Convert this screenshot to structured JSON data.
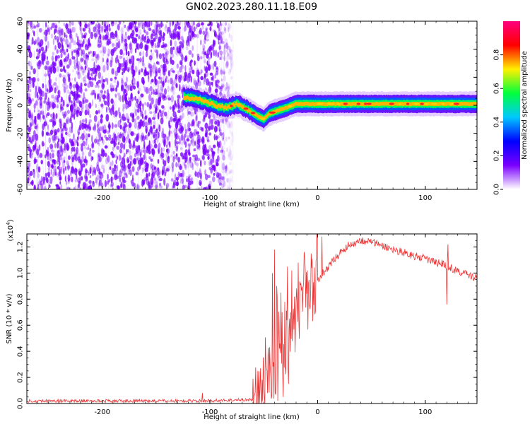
{
  "title": "GN02.2023.280.11.18.E09",
  "chart_data": [
    {
      "type": "heatmap",
      "xlabel": "Height of straight line (km)",
      "ylabel": "Frequency (Hz)",
      "xlim": [
        -270,
        148
      ],
      "ylim": [
        -60,
        60
      ],
      "xticks": [
        -200,
        -100,
        0,
        100
      ],
      "xtick_labels": [
        "-200",
        "-100",
        "0",
        "100"
      ],
      "yticks": [
        -60,
        -40,
        -20,
        0,
        20,
        40,
        60
      ],
      "ytick_labels": [
        "-60",
        "-40",
        "-20",
        "0",
        "20",
        "40",
        "60"
      ],
      "noise_region_x": [
        -270,
        -78
      ],
      "ridge": [
        {
          "x": -125,
          "y": 6
        },
        {
          "x": -115,
          "y": 5
        },
        {
          "x": -105,
          "y": 3
        },
        {
          "x": -95,
          "y": 0
        },
        {
          "x": -85,
          "y": -2
        },
        {
          "x": -75,
          "y": 1
        },
        {
          "x": -65,
          "y": -3
        },
        {
          "x": -55,
          "y": -8
        },
        {
          "x": -50,
          "y": -10
        },
        {
          "x": -45,
          "y": -6
        },
        {
          "x": -38,
          "y": -4
        },
        {
          "x": -30,
          "y": -2
        },
        {
          "x": -20,
          "y": 1
        },
        {
          "x": -10,
          "y": 1
        },
        {
          "x": 0,
          "y": 1
        },
        {
          "x": 20,
          "y": 1
        },
        {
          "x": 40,
          "y": 1
        },
        {
          "x": 60,
          "y": 1
        },
        {
          "x": 80,
          "y": 1
        },
        {
          "x": 100,
          "y": 1
        },
        {
          "x": 120,
          "y": 1
        },
        {
          "x": 148,
          "y": 1
        }
      ],
      "ridge_halfwidth_hz": 4,
      "colorbar": {
        "label": "Normalized spectral amplitude",
        "range": [
          0,
          1
        ],
        "ticks": [
          0,
          0.2,
          0.4,
          0.6,
          0.8
        ],
        "tick_labels": [
          "0.0",
          "0.2",
          "0.4",
          "0.6",
          "0.8"
        ],
        "colormap": [
          "#ffffff",
          "#7a00ff",
          "#0000ff",
          "#00c8ff",
          "#00ff3c",
          "#fff000",
          "#ff0000",
          "#ff007f"
        ]
      },
      "colors": {
        "noise": "#7a00ff",
        "ridge_core": "#ff2020"
      }
    },
    {
      "type": "line",
      "xlabel": "Height of straight line (km)",
      "ylabel": "SNR (10 * v/v)",
      "y_multiplier": "(x10",
      "y_multiplier_exp": "4",
      "y_multiplier_close": ")",
      "xlim": [
        -270,
        148
      ],
      "ylim": [
        0,
        1.3
      ],
      "xticks": [
        -200,
        -100,
        0,
        100
      ],
      "xtick_labels": [
        "-200",
        "-100",
        "0",
        "100"
      ],
      "yticks": [
        0,
        0.2,
        0.4,
        0.6,
        0.8,
        1.0,
        1.2
      ],
      "ytick_labels": [
        "0.0",
        "0.2",
        "0.4",
        "0.6",
        "0.8",
        "1.0",
        "1.2"
      ],
      "color": "#ee3333",
      "envelope": [
        {
          "x": -270,
          "y": 0.02
        },
        {
          "x": -110,
          "y": 0.02
        },
        {
          "x": -60,
          "y": 0.03
        },
        {
          "x": -55,
          "y": 0.08
        },
        {
          "x": -45,
          "y": 0.15
        },
        {
          "x": -40,
          "y": 0.25
        },
        {
          "x": -35,
          "y": 0.55
        },
        {
          "x": -30,
          "y": 0.35
        },
        {
          "x": -25,
          "y": 0.5
        },
        {
          "x": -20,
          "y": 0.65
        },
        {
          "x": -15,
          "y": 0.72
        },
        {
          "x": -10,
          "y": 0.8
        },
        {
          "x": -5,
          "y": 0.85
        },
        {
          "x": 0,
          "y": 0.95
        },
        {
          "x": 10,
          "y": 1.05
        },
        {
          "x": 20,
          "y": 1.15
        },
        {
          "x": 30,
          "y": 1.22
        },
        {
          "x": 40,
          "y": 1.25
        },
        {
          "x": 50,
          "y": 1.24
        },
        {
          "x": 60,
          "y": 1.21
        },
        {
          "x": 70,
          "y": 1.18
        },
        {
          "x": 80,
          "y": 1.16
        },
        {
          "x": 90,
          "y": 1.13
        },
        {
          "x": 100,
          "y": 1.11
        },
        {
          "x": 110,
          "y": 1.08
        },
        {
          "x": 118,
          "y": 1.07
        },
        {
          "x": 125,
          "y": 1.03
        },
        {
          "x": 135,
          "y": 1.0
        },
        {
          "x": 148,
          "y": 0.96
        }
      ],
      "spikes": [
        {
          "x": -42,
          "y": 1.0
        },
        {
          "x": -40,
          "y": 1.18
        },
        {
          "x": -38,
          "y": 0.9
        },
        {
          "x": -34,
          "y": 0.85
        },
        {
          "x": -28,
          "y": 1.05
        },
        {
          "x": -24,
          "y": 1.02
        },
        {
          "x": -18,
          "y": 1.08
        },
        {
          "x": -12,
          "y": 1.12
        },
        {
          "x": -6,
          "y": 1.15
        },
        {
          "x": 4,
          "y": 1.28
        },
        {
          "x": 121,
          "y": 1.22
        },
        {
          "x": -107,
          "y": 0.08
        }
      ],
      "dips": [
        {
          "x": -37,
          "y": 0.02
        },
        {
          "x": -32,
          "y": 0.05
        },
        {
          "x": -27,
          "y": 0.15
        },
        {
          "x": 120,
          "y": 0.76
        }
      ]
    }
  ]
}
